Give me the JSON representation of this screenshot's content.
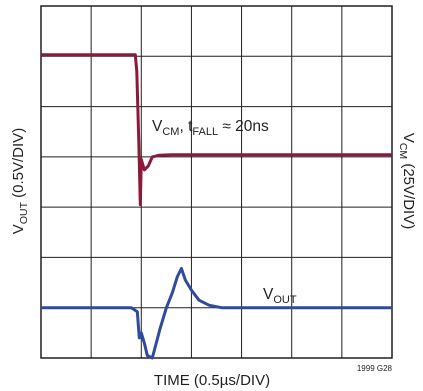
{
  "chart_data": {
    "type": "line",
    "x": {
      "label": "TIME (0.5µs/DIV)",
      "divisions": 7,
      "range_div": [
        0,
        7
      ],
      "units_per_div": "0.5µs"
    },
    "y_left": {
      "label_main": "V",
      "label_sub": "OUT",
      "label_rest": " (0.5V/DIV)",
      "divisions": 7
    },
    "y_right": {
      "label_main": "V",
      "label_sub": "CM",
      "label_rest": " (25V/DIV)"
    },
    "grid": true,
    "series": [
      {
        "name": "VCM",
        "color": "#8b1a3a",
        "unit_div": "grid divisions",
        "points": [
          [
            0,
            6.03
          ],
          [
            1.88,
            6.03
          ],
          [
            1.91,
            5.7
          ],
          [
            1.95,
            4.3
          ],
          [
            1.98,
            3.05
          ],
          [
            2.0,
            3.95
          ],
          [
            2.06,
            3.74
          ],
          [
            2.14,
            3.82
          ],
          [
            2.22,
            4.0
          ],
          [
            2.35,
            4.03
          ],
          [
            2.6,
            4.04
          ],
          [
            7,
            4.04
          ]
        ]
      },
      {
        "name": "VOUT",
        "color": "#2e4c9c",
        "unit_div": "grid divisions",
        "points": [
          [
            0,
            1.0
          ],
          [
            1.8,
            1.0
          ],
          [
            1.92,
            0.92
          ],
          [
            1.96,
            0.4
          ],
          [
            2.0,
            0.5
          ],
          [
            2.06,
            0.3
          ],
          [
            2.12,
            0.05
          ],
          [
            2.22,
            0.0
          ],
          [
            2.3,
            0.3
          ],
          [
            2.38,
            0.6
          ],
          [
            2.5,
            1.0
          ],
          [
            2.62,
            1.3
          ],
          [
            2.72,
            1.62
          ],
          [
            2.8,
            1.78
          ],
          [
            2.88,
            1.55
          ],
          [
            3.0,
            1.35
          ],
          [
            3.15,
            1.15
          ],
          [
            3.35,
            1.05
          ],
          [
            3.6,
            1.0
          ],
          [
            7,
            1.0
          ]
        ]
      }
    ],
    "annotations": {
      "vcm": {
        "main": "V",
        "sub": "CM",
        "sep": ", t",
        "sub2": "FALL",
        "rest": " ≈ 20ns"
      },
      "vout": {
        "main": "V",
        "sub": "OUT"
      },
      "figure_id": "1999 G28"
    }
  }
}
